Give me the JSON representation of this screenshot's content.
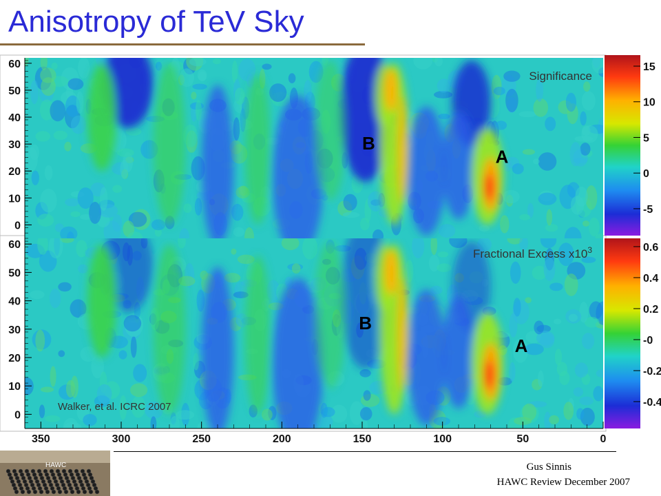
{
  "slide": {
    "title": "Anisotropy of TeV Sky",
    "footer_presenter": "Gus Sinnis",
    "footer_event": "HAWC Review December 2007",
    "logo_text": "HAWC"
  },
  "chart_data": [
    {
      "type": "heatmap",
      "title": "Significance",
      "x": {
        "ticks": [
          350,
          300,
          250,
          200,
          150,
          100,
          50,
          0
        ],
        "range": [
          360,
          0
        ]
      },
      "y": {
        "ticks": [
          0,
          10,
          20,
          30,
          40,
          50,
          60
        ],
        "range": [
          -5,
          62
        ]
      },
      "colorbar": {
        "ticks": [
          "15",
          "10",
          "5",
          "0",
          "-5"
        ],
        "range": [
          -8,
          16
        ]
      },
      "annotations": [
        {
          "text": "B",
          "x": 146,
          "y": 28
        },
        {
          "text": "A",
          "x": 63,
          "y": 23
        }
      ]
    },
    {
      "type": "heatmap",
      "title": "Fractional Excess x10",
      "title_superscript": "3",
      "x": {
        "ticks": [
          350,
          300,
          250,
          200,
          150,
          100,
          50,
          0
        ],
        "range": [
          360,
          0
        ]
      },
      "y": {
        "ticks": [
          0,
          10,
          20,
          30,
          40,
          50,
          60
        ],
        "range": [
          -5,
          62
        ]
      },
      "colorbar": {
        "ticks": [
          "0.6",
          "0.4",
          "0.2",
          "-0",
          "-0.2",
          "-0.4"
        ],
        "range": [
          -0.5,
          0.8
        ]
      },
      "annotations": [
        {
          "text": "B",
          "x": 148,
          "y": 30
        },
        {
          "text": "A",
          "x": 51,
          "y": 22
        }
      ],
      "citation": "Walker, et al. ICRC 2007"
    }
  ]
}
